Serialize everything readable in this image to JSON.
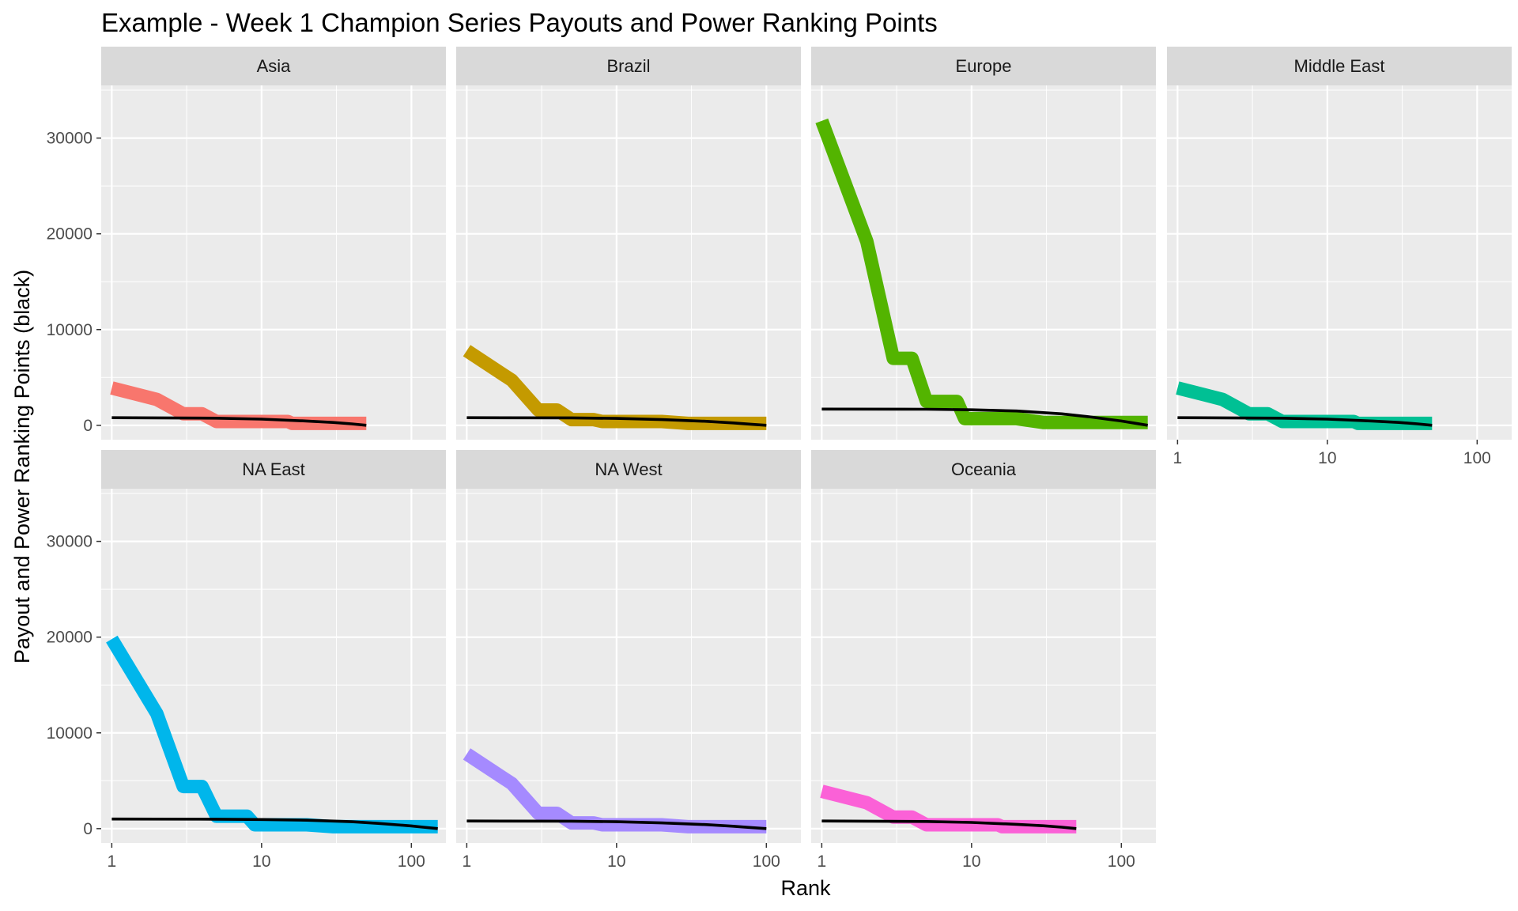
{
  "chart_data": {
    "type": "line",
    "title": "Example - Week 1 Champion Series Payouts and Power Ranking Points",
    "xlabel": "Rank",
    "ylabel": "Payout and Power Ranking Points (black)",
    "x_scale": "log10",
    "xlim": [
      0.85,
      170
    ],
    "ylim": [
      -1500,
      35500
    ],
    "x_ticks": [
      1,
      10,
      100
    ],
    "x_tick_labels": [
      "1",
      "10",
      "100"
    ],
    "y_ticks": [
      0,
      10000,
      20000,
      30000
    ],
    "y_tick_labels": [
      "0",
      "10000",
      "20000",
      "30000"
    ],
    "grid": true,
    "legend": "none",
    "panels": [
      {
        "name": "Asia",
        "color": "#F8766D",
        "payout": {
          "x": [
            1,
            2,
            3,
            4,
            5,
            6,
            7,
            8,
            9,
            10,
            15,
            16,
            20,
            30,
            50
          ],
          "y": [
            3900,
            2700,
            1200,
            1200,
            400,
            400,
            400,
            400,
            400,
            400,
            400,
            200,
            200,
            200,
            200
          ]
        },
        "points": {
          "x": [
            1,
            5,
            10,
            20,
            30,
            40,
            50
          ],
          "y": [
            800,
            750,
            650,
            450,
            300,
            150,
            0
          ]
        }
      },
      {
        "name": "Brazil",
        "color": "#C49A00",
        "payout": {
          "x": [
            1,
            2,
            3,
            4,
            5,
            6,
            7,
            8,
            9,
            10,
            20,
            30,
            50,
            100
          ],
          "y": [
            7800,
            4700,
            1600,
            1600,
            600,
            600,
            600,
            400,
            400,
            400,
            400,
            200,
            200,
            200
          ]
        },
        "points": {
          "x": [
            1,
            5,
            10,
            20,
            40,
            60,
            80,
            100
          ],
          "y": [
            800,
            780,
            720,
            600,
            420,
            250,
            100,
            0
          ]
        }
      },
      {
        "name": "Europe",
        "color": "#53B400",
        "payout": {
          "x": [
            1,
            2,
            3,
            4,
            5,
            6,
            7,
            8,
            9,
            10,
            15,
            20,
            30,
            50,
            100,
            150
          ],
          "y": [
            31800,
            19200,
            7000,
            7000,
            2500,
            2500,
            2500,
            2500,
            700,
            700,
            700,
            700,
            300,
            300,
            300,
            300
          ]
        },
        "points": {
          "x": [
            1,
            5,
            10,
            20,
            40,
            60,
            80,
            100,
            120,
            150
          ],
          "y": [
            1700,
            1680,
            1620,
            1500,
            1200,
            900,
            650,
            450,
            250,
            0
          ]
        }
      },
      {
        "name": "Middle East",
        "color": "#00C094",
        "payout": {
          "x": [
            1,
            2,
            3,
            4,
            5,
            6,
            7,
            8,
            9,
            10,
            15,
            16,
            20,
            30,
            50
          ],
          "y": [
            3900,
            2700,
            1200,
            1200,
            400,
            400,
            400,
            400,
            400,
            400,
            400,
            200,
            200,
            200,
            200
          ]
        },
        "points": {
          "x": [
            1,
            5,
            10,
            20,
            30,
            40,
            50
          ],
          "y": [
            800,
            750,
            650,
            450,
            300,
            150,
            0
          ]
        }
      },
      {
        "name": "NA East",
        "color": "#00B6EB",
        "payout": {
          "x": [
            1,
            2,
            3,
            4,
            5,
            6,
            7,
            8,
            9,
            10,
            15,
            20,
            30,
            50,
            100,
            150
          ],
          "y": [
            19800,
            12000,
            4400,
            4400,
            1300,
            1300,
            1300,
            1300,
            400,
            400,
            400,
            400,
            200,
            200,
            200,
            200
          ]
        },
        "points": {
          "x": [
            1,
            5,
            10,
            20,
            40,
            60,
            80,
            100,
            120,
            150
          ],
          "y": [
            1000,
            990,
            950,
            880,
            720,
            550,
            400,
            280,
            150,
            0
          ]
        }
      },
      {
        "name": "NA West",
        "color": "#A58AFF",
        "payout": {
          "x": [
            1,
            2,
            3,
            4,
            5,
            6,
            7,
            8,
            9,
            10,
            20,
            30,
            50,
            100
          ],
          "y": [
            7800,
            4700,
            1600,
            1600,
            600,
            600,
            600,
            400,
            400,
            400,
            400,
            200,
            200,
            200
          ]
        },
        "points": {
          "x": [
            1,
            5,
            10,
            20,
            40,
            60,
            80,
            100
          ],
          "y": [
            800,
            780,
            720,
            600,
            420,
            250,
            100,
            0
          ]
        }
      },
      {
        "name": "Oceania",
        "color": "#FB61D7",
        "payout": {
          "x": [
            1,
            2,
            3,
            4,
            5,
            6,
            7,
            8,
            9,
            10,
            15,
            16,
            20,
            30,
            50
          ],
          "y": [
            3900,
            2700,
            1200,
            1200,
            400,
            400,
            400,
            400,
            400,
            400,
            400,
            200,
            200,
            200,
            200
          ]
        },
        "points": {
          "x": [
            1,
            5,
            10,
            20,
            30,
            40,
            50
          ],
          "y": [
            800,
            750,
            650,
            450,
            300,
            150,
            0
          ]
        }
      }
    ]
  }
}
